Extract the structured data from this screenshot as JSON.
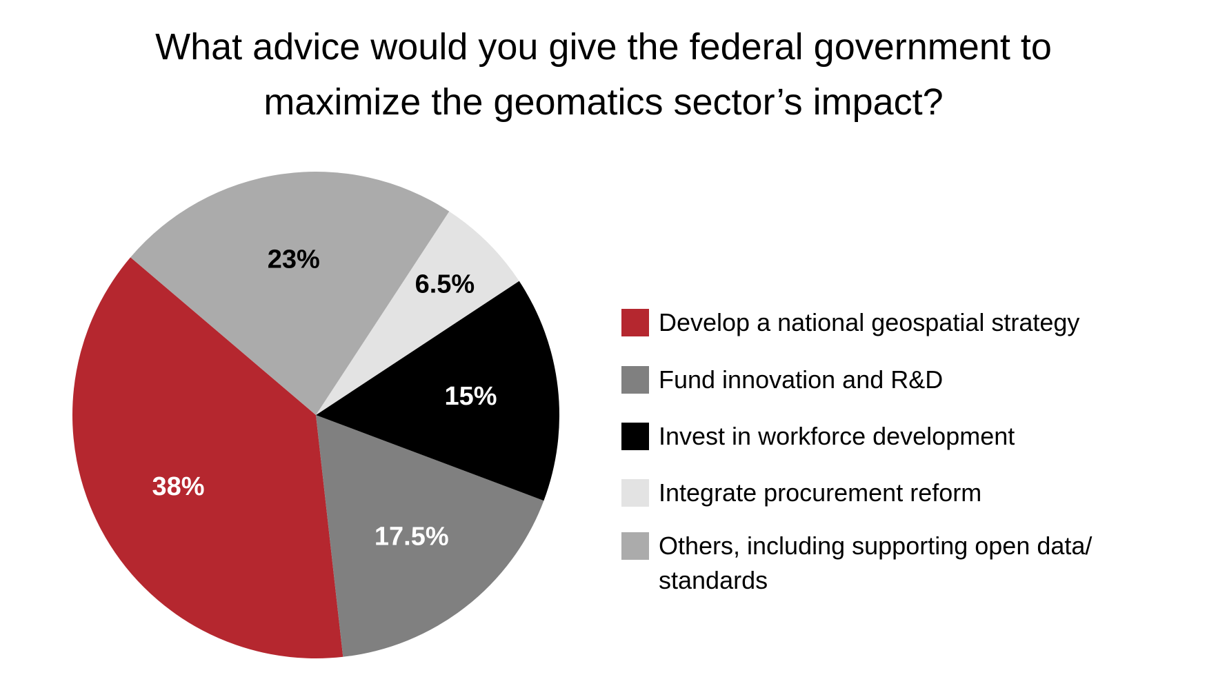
{
  "chart_data": {
    "type": "pie",
    "title": "What advice would you give the federal government to maximize the geomatics sector’s impact?",
    "categories": [
      "Develop a national geospatial strategy",
      "Fund innovation and R&D",
      "Invest in workforce development",
      "Integrate procurement reform",
      "Others, including supporting open data/ standards"
    ],
    "values": [
      38,
      17.5,
      15,
      6.5,
      23
    ],
    "value_labels": [
      "38%",
      "17.5%",
      "15%",
      "6.5%",
      "23%"
    ],
    "colors": [
      "#b5272f",
      "#808080",
      "#000000",
      "#e3e3e3",
      "#ababab"
    ]
  }
}
